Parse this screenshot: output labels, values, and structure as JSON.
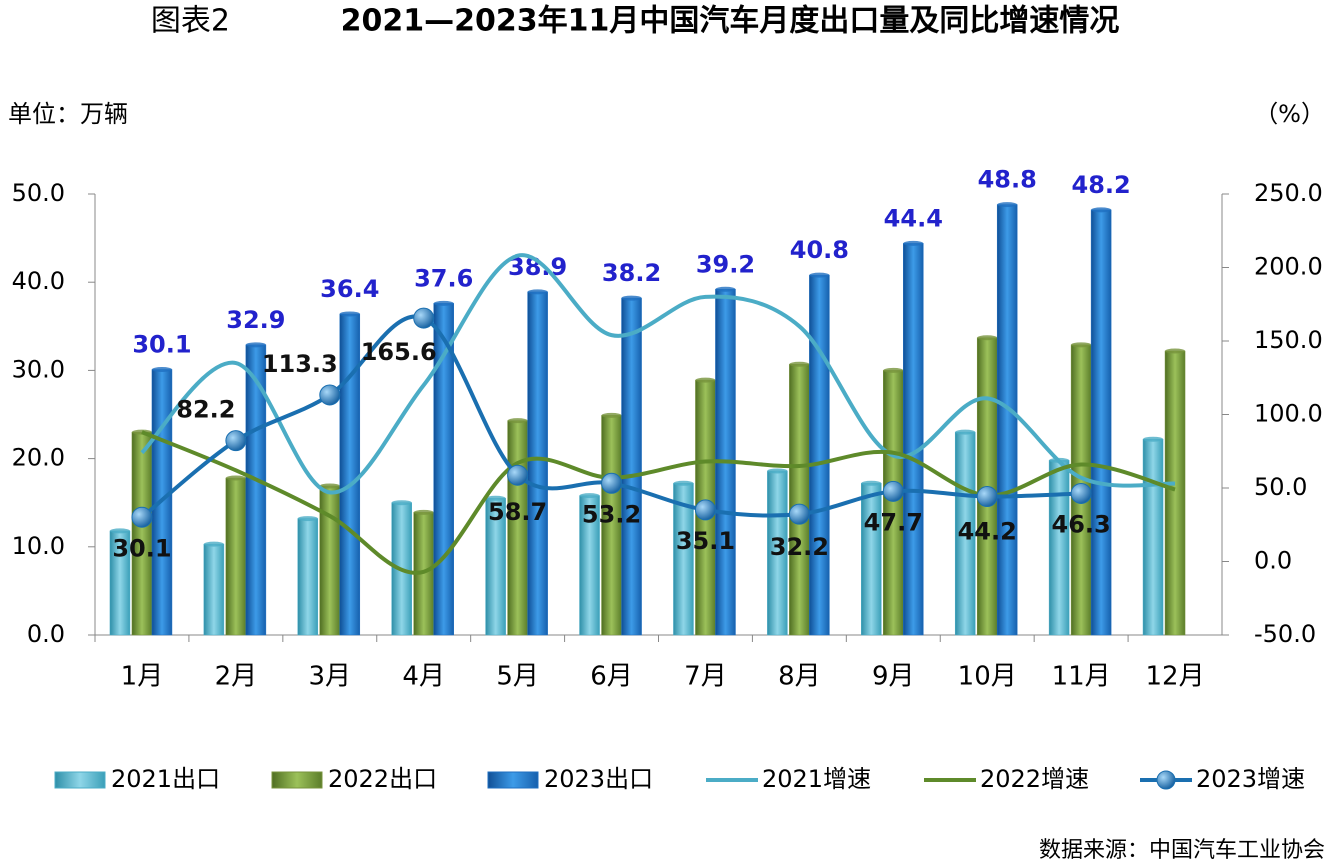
{
  "chart_data": {
    "type": "combo",
    "figure_label": "图表2",
    "title": "2021—2023年11月中国汽车月度出口量及同比增速情况",
    "y_label": "单位：万辆",
    "y2_label": "（%）",
    "source": "数据来源：中国汽车工业协会",
    "categories": [
      "1月",
      "2月",
      "3月",
      "4月",
      "5月",
      "6月",
      "7月",
      "8月",
      "9月",
      "10月",
      "11月",
      "12月"
    ],
    "ylim": [
      0,
      50
    ],
    "yticks": [
      {
        "value": 0,
        "label": "0.0"
      },
      {
        "value": 10,
        "label": "10.0"
      },
      {
        "value": 20,
        "label": "20.0"
      },
      {
        "value": 30,
        "label": "30.0"
      },
      {
        "value": 40,
        "label": "40.0"
      },
      {
        "value": 50,
        "label": "50.0"
      }
    ],
    "y2lim": [
      -50,
      250
    ],
    "y2ticks": [
      {
        "value": -50,
        "label": "-50.0"
      },
      {
        "value": 0,
        "label": "0.0"
      },
      {
        "value": 50,
        "label": "50.0"
      },
      {
        "value": 100,
        "label": "100.0"
      },
      {
        "value": 150,
        "label": "150.0"
      },
      {
        "value": 200,
        "label": "200.0"
      },
      {
        "value": 250,
        "label": "250.0"
      }
    ],
    "series": [
      {
        "name": "2021出口",
        "type": "bar",
        "color": "#4bacc6",
        "values": [
          11.8,
          10.3,
          13.2,
          15.0,
          15.5,
          15.8,
          17.2,
          18.6,
          17.2,
          23.0,
          19.8,
          22.2
        ]
      },
      {
        "name": "2022出口",
        "type": "bar",
        "color": "#77933c",
        "values": [
          23.0,
          17.8,
          16.9,
          13.9,
          24.3,
          24.9,
          28.9,
          30.7,
          30.0,
          33.7,
          32.9,
          32.2
        ]
      },
      {
        "name": "2023出口",
        "type": "bar",
        "color": "#1f6fc0",
        "values": [
          30.1,
          32.9,
          36.4,
          37.6,
          38.9,
          38.2,
          39.2,
          40.8,
          44.4,
          48.8,
          48.2,
          null
        ],
        "show_labels": true
      },
      {
        "name": "2021增速",
        "type": "line",
        "axis": "y2",
        "color": "#4bacc6",
        "values": [
          74,
          135,
          47,
          120,
          208,
          154,
          180,
          160,
          72,
          111,
          57,
          53
        ]
      },
      {
        "name": "2022增速",
        "type": "line",
        "axis": "y2",
        "color": "#5e8a2a",
        "values": [
          88,
          62,
          31,
          -7,
          67,
          57,
          68,
          65,
          74,
          45,
          66,
          49
        ]
      },
      {
        "name": "2023增速",
        "type": "line",
        "axis": "y2",
        "color": "#1a6fb0",
        "values": [
          30.1,
          82.2,
          113.3,
          165.6,
          58.7,
          53.2,
          35.1,
          32.2,
          47.7,
          44.2,
          46.3,
          null
        ],
        "markers": true,
        "show_labels": true
      }
    ]
  }
}
